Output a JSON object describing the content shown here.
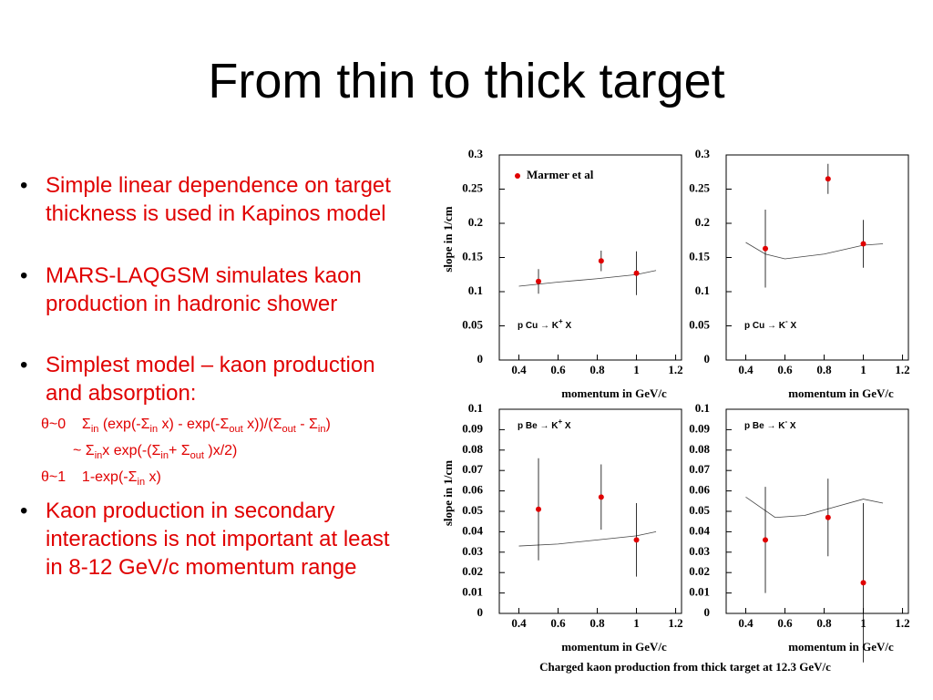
{
  "title": "From thin to thick target",
  "bullets": [
    "Simple linear dependence on target thickness is used in Kapinos model",
    "MARS-LAQGSM simulates kaon production in hadronic shower",
    "Simplest model – kaon production and absorption:",
    "Kaon production in secondary interactions is not important at least in 8-12 GeV/c momentum range"
  ],
  "formulas": [
    [
      "θ~0    ",
      {
        "text": "Σ",
        "sub": "in"
      },
      " (exp(-",
      {
        "text": "Σ",
        "sub": "in"
      },
      " x) - exp(-",
      {
        "text": "Σ",
        "sub": "out"
      },
      " x))/(",
      {
        "text": "Σ",
        "sub": "out"
      },
      " - ",
      {
        "text": "Σ",
        "sub": "in"
      },
      ")"
    ],
    [
      "~ ",
      {
        "text": "Σ",
        "sub": "in"
      },
      "x exp(-(",
      {
        "text": "Σ",
        "sub": "in"
      },
      "+ ",
      {
        "text": "Σ",
        "sub": "out"
      },
      " )x/2)"
    ],
    [
      "θ~1    1-exp(-",
      {
        "text": "Σ",
        "sub": "in"
      },
      " x)"
    ]
  ],
  "caption": "Charged kaon production from thick target at 12.3 GeV/c",
  "chart_data": [
    {
      "type": "scatter",
      "xlabel": "momentum in GeV/c",
      "ylabel": "slope in 1/cm",
      "legend": "Marmer et al",
      "annotation": [
        {
          "text": "p Cu → K",
          "sup": "+"
        },
        " X"
      ],
      "color": "#e00000",
      "x": [
        0.5,
        0.82,
        1.0
      ],
      "values": [
        0.115,
        0.145,
        0.127
      ],
      "errors": [
        0.018,
        0.015,
        0.032
      ],
      "curve": {
        "x": [
          0.4,
          0.6,
          0.8,
          1.0,
          1.1
        ],
        "values": [
          0.108,
          0.114,
          0.119,
          0.125,
          0.131
        ]
      },
      "xlim": [
        0.3,
        1.23
      ],
      "ylim": [
        0,
        0.3
      ],
      "xticks": [
        0.4,
        0.6,
        0.8,
        1,
        1.2
      ],
      "yticks": [
        0,
        0.05,
        0.1,
        0.15,
        0.2,
        0.25,
        0.3
      ]
    },
    {
      "type": "scatter",
      "xlabel": "momentum in GeV/c",
      "annotation": [
        {
          "text": "p Cu → K",
          "sup": "-"
        },
        " X"
      ],
      "color": "#e00000",
      "x": [
        0.5,
        0.82,
        1.0
      ],
      "values": [
        0.163,
        0.265,
        0.17
      ],
      "errors": [
        0.057,
        0.022,
        0.035
      ],
      "curve": {
        "x": [
          0.4,
          0.5,
          0.6,
          0.8,
          1.0,
          1.1
        ],
        "values": [
          0.172,
          0.155,
          0.148,
          0.155,
          0.168,
          0.17
        ]
      },
      "xlim": [
        0.3,
        1.23
      ],
      "ylim": [
        0,
        0.3
      ],
      "xticks": [
        0.4,
        0.6,
        0.8,
        1,
        1.2
      ],
      "yticks": [
        0,
        0.05,
        0.1,
        0.15,
        0.2,
        0.25,
        0.3
      ]
    },
    {
      "type": "scatter",
      "xlabel": "momentum in GeV/c",
      "ylabel": "slope in 1/cm",
      "annotation": [
        {
          "text": "p Be → K",
          "sup": "+"
        },
        " X"
      ],
      "color": "#e00000",
      "x": [
        0.5,
        0.82,
        1.0
      ],
      "values": [
        0.051,
        0.057,
        0.036
      ],
      "errors": [
        0.025,
        0.016,
        0.018
      ],
      "curve": {
        "x": [
          0.4,
          0.6,
          0.8,
          1.0,
          1.1
        ],
        "values": [
          0.033,
          0.034,
          0.036,
          0.038,
          0.04
        ]
      },
      "xlim": [
        0.3,
        1.23
      ],
      "ylim": [
        0,
        0.1
      ],
      "xticks": [
        0.4,
        0.6,
        0.8,
        1,
        1.2
      ],
      "yticks": [
        0,
        0.01,
        0.02,
        0.03,
        0.04,
        0.05,
        0.06,
        0.07,
        0.08,
        0.09,
        0.1
      ]
    },
    {
      "type": "scatter",
      "xlabel": "momentum in GeV/c",
      "annotation": [
        {
          "text": "p Be → K",
          "sup": "-"
        },
        " X"
      ],
      "color": "#e00000",
      "x": [
        0.5,
        0.82,
        1.0
      ],
      "values": [
        0.036,
        0.047,
        0.015
      ],
      "errors": [
        0.026,
        0.019,
        0.039
      ],
      "curve": {
        "x": [
          0.4,
          0.55,
          0.7,
          0.85,
          1.0,
          1.1
        ],
        "values": [
          0.057,
          0.047,
          0.048,
          0.052,
          0.056,
          0.054
        ]
      },
      "xlim": [
        0.3,
        1.23
      ],
      "ylim": [
        0,
        0.1
      ],
      "xticks": [
        0.4,
        0.6,
        0.8,
        1,
        1.2
      ],
      "yticks": [
        0,
        0.01,
        0.02,
        0.03,
        0.04,
        0.05,
        0.06,
        0.07,
        0.08,
        0.09,
        0.1
      ]
    }
  ]
}
